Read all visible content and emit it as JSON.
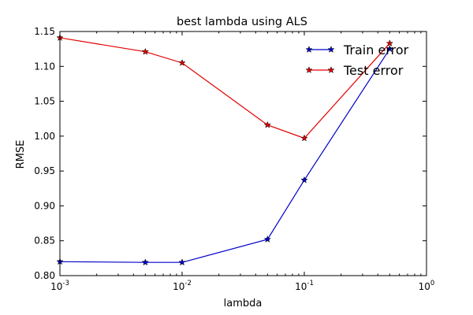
{
  "chart_data": {
    "type": "line",
    "title": "best lambda using ALS",
    "xlabel": "lambda",
    "ylabel": "RMSE",
    "x_scale": "log",
    "xlim": [
      0.001,
      1
    ],
    "ylim": [
      0.8,
      1.15
    ],
    "grid": false,
    "legend_position": "top-right",
    "x": [
      0.001,
      0.005,
      0.01,
      0.05,
      0.1,
      0.5
    ],
    "x_ticks": [
      {
        "value": 0.001,
        "base": "10",
        "exp": "-3"
      },
      {
        "value": 0.01,
        "base": "10",
        "exp": "-2"
      },
      {
        "value": 0.1,
        "base": "10",
        "exp": "-1"
      },
      {
        "value": 1,
        "base": "10",
        "exp": "0"
      }
    ],
    "y_ticks": [
      "0.80",
      "0.85",
      "0.90",
      "0.95",
      "1.00",
      "1.05",
      "1.10",
      "1.15"
    ],
    "series": [
      {
        "name": "Train error",
        "color": "#0000cc",
        "marker": "star",
        "values": [
          0.82,
          0.819,
          0.819,
          0.852,
          0.937,
          1.125
        ]
      },
      {
        "name": "Test error",
        "color": "#e00000",
        "marker": "star",
        "values": [
          1.141,
          1.121,
          1.105,
          1.016,
          0.997,
          1.133
        ]
      }
    ]
  }
}
